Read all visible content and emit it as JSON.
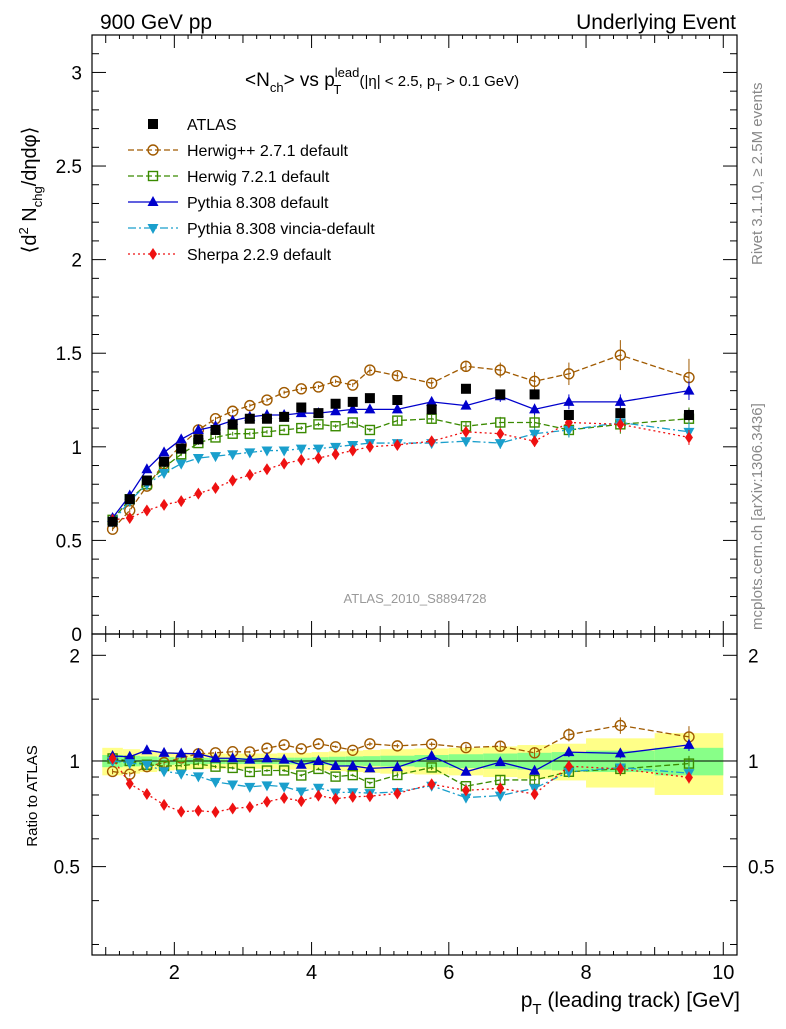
{
  "header": {
    "left": "900 GeV pp",
    "right": "Underlying Event"
  },
  "side_labels": {
    "rivet": "Rivet 3.1.10, ≥ 2.5M events",
    "mcplots": "mcplots.cern.ch [arXiv:1306.3436]"
  },
  "watermark": "ATLAS_2010_S8894728",
  "chart_data": {
    "type": "line",
    "title_main": "<N",
    "title_sub_ch": "ch",
    "title_mid": "> vs p",
    "title_sup_lead": "lead",
    "title_sub_T": "T",
    "title_cuts_a": " (|η| < 2.5, p",
    "title_cuts_sub": "T",
    "title_cuts_b": " > 0.1 GeV)",
    "ylabel_main": "⟨d",
    "ylabel_sup": "2",
    "ylabel_mid": " N",
    "ylabel_sub": "chg",
    "ylabel_end": "/dηdφ⟩",
    "ratio_ylabel": "Ratio to ATLAS",
    "xlabel_main": "p",
    "xlabel_sub": "T",
    "xlabel_end": " (leading track) [GeV]",
    "xlim": [
      0.8,
      10.2
    ],
    "ylim": [
      0,
      3.2
    ],
    "ratio_ylim": [
      0.28,
      2.3
    ],
    "x_ticks": [
      "2",
      "4",
      "6",
      "8",
      "10"
    ],
    "y_ticks": [
      "0",
      "0.5",
      "1",
      "1.5",
      "2",
      "2.5",
      "3"
    ],
    "ratio_y_ticks": [
      "0.5",
      "1",
      "2"
    ],
    "x": [
      1.1,
      1.35,
      1.6,
      1.85,
      2.1,
      2.35,
      2.6,
      2.85,
      3.1,
      3.35,
      3.6,
      3.85,
      4.1,
      4.35,
      4.6,
      4.85,
      5.25,
      5.75,
      6.25,
      6.75,
      7.25,
      7.75,
      8.5,
      9.5
    ],
    "series": [
      {
        "name": "ATLAS",
        "color": "#000000",
        "marker": "square-filled",
        "y": [
          0.6,
          0.72,
          0.82,
          0.92,
          0.99,
          1.04,
          1.09,
          1.12,
          1.15,
          1.15,
          1.16,
          1.21,
          1.18,
          1.23,
          1.24,
          1.26,
          1.25,
          1.2,
          1.31,
          1.28,
          1.28,
          1.17,
          1.18,
          1.17
        ],
        "yerr": [
          0.01,
          0.01,
          0.01,
          0.01,
          0.01,
          0.01,
          0.01,
          0.01,
          0.01,
          0.01,
          0.01,
          0.01,
          0.01,
          0.01,
          0.01,
          0.01,
          0.01,
          0.01,
          0.01,
          0.01,
          0.02,
          0.02,
          0.02,
          0.03
        ]
      },
      {
        "name": "Herwig++ 2.7.1 default",
        "color": "#a05a00",
        "marker": "circle-open",
        "line": "dashed",
        "y": [
          0.56,
          0.66,
          0.79,
          0.91,
          1.01,
          1.09,
          1.15,
          1.19,
          1.22,
          1.25,
          1.29,
          1.31,
          1.32,
          1.35,
          1.33,
          1.41,
          1.38,
          1.34,
          1.43,
          1.41,
          1.35,
          1.39,
          1.49,
          1.37
        ],
        "yerr": [
          0.01,
          0.01,
          0.01,
          0.01,
          0.01,
          0.01,
          0.01,
          0.01,
          0.01,
          0.01,
          0.01,
          0.01,
          0.01,
          0.01,
          0.01,
          0.02,
          0.02,
          0.02,
          0.03,
          0.04,
          0.05,
          0.06,
          0.08,
          0.1
        ]
      },
      {
        "name": "Herwig 7.2.1 default",
        "color": "#3a8a00",
        "marker": "square-open",
        "line": "dashed",
        "y": [
          0.61,
          0.72,
          0.8,
          0.89,
          0.96,
          1.02,
          1.05,
          1.07,
          1.07,
          1.08,
          1.09,
          1.1,
          1.12,
          1.11,
          1.13,
          1.09,
          1.14,
          1.15,
          1.11,
          1.13,
          1.13,
          1.09,
          1.12,
          1.15
        ],
        "yerr": [
          0.01,
          0.01,
          0.01,
          0.01,
          0.01,
          0.01,
          0.01,
          0.01,
          0.01,
          0.01,
          0.01,
          0.01,
          0.01,
          0.01,
          0.01,
          0.01,
          0.02,
          0.02,
          0.02,
          0.03,
          0.04,
          0.04,
          0.05,
          0.06
        ]
      },
      {
        "name": "Pythia 8.308 default",
        "color": "#0000cc",
        "marker": "triangle-up",
        "line": "solid",
        "y": [
          0.62,
          0.74,
          0.88,
          0.97,
          1.04,
          1.09,
          1.11,
          1.14,
          1.16,
          1.17,
          1.17,
          1.18,
          1.18,
          1.19,
          1.2,
          1.2,
          1.2,
          1.24,
          1.22,
          1.27,
          1.2,
          1.24,
          1.24,
          1.3
        ],
        "yerr": [
          0.01,
          0.01,
          0.01,
          0.01,
          0.01,
          0.01,
          0.01,
          0.01,
          0.01,
          0.01,
          0.01,
          0.01,
          0.01,
          0.01,
          0.01,
          0.01,
          0.02,
          0.02,
          0.02,
          0.03,
          0.03,
          0.04,
          0.04,
          0.05
        ]
      },
      {
        "name": "Pythia 8.308 vincia-default",
        "color": "#1a9fcc",
        "marker": "triangle-down",
        "line": "dashdot",
        "y": [
          0.6,
          0.71,
          0.8,
          0.86,
          0.91,
          0.94,
          0.95,
          0.96,
          0.97,
          0.98,
          0.98,
          0.99,
          0.99,
          1.0,
          1.01,
          1.02,
          1.02,
          1.02,
          1.03,
          1.02,
          1.07,
          1.09,
          1.13,
          1.08
        ],
        "yerr": [
          0.01,
          0.01,
          0.01,
          0.01,
          0.01,
          0.01,
          0.01,
          0.01,
          0.01,
          0.01,
          0.01,
          0.01,
          0.01,
          0.01,
          0.01,
          0.01,
          0.01,
          0.02,
          0.02,
          0.03,
          0.03,
          0.04,
          0.04,
          0.05
        ]
      },
      {
        "name": "Sherpa 2.2.9 default",
        "color": "#ee1111",
        "marker": "diamond",
        "line": "dotted",
        "y": [
          0.61,
          0.62,
          0.66,
          0.69,
          0.71,
          0.75,
          0.78,
          0.82,
          0.85,
          0.88,
          0.91,
          0.93,
          0.94,
          0.96,
          0.98,
          1.0,
          1.01,
          1.03,
          1.08,
          1.07,
          1.03,
          1.13,
          1.12,
          1.05
        ],
        "yerr": [
          0.01,
          0.01,
          0.01,
          0.01,
          0.01,
          0.01,
          0.01,
          0.01,
          0.01,
          0.01,
          0.01,
          0.01,
          0.01,
          0.01,
          0.01,
          0.01,
          0.01,
          0.02,
          0.02,
          0.02,
          0.03,
          0.03,
          0.04,
          0.04
        ]
      }
    ],
    "ratio_bands": [
      {
        "x0": 0.95,
        "x1": 1.25,
        "yellow": 0.09,
        "green": 0.04
      },
      {
        "x0": 1.25,
        "x1": 1.5,
        "yellow": 0.08,
        "green": 0.035
      },
      {
        "x0": 1.5,
        "x1": 1.75,
        "yellow": 0.07,
        "green": 0.03
      },
      {
        "x0": 1.75,
        "x1": 2.0,
        "yellow": 0.06,
        "green": 0.025
      },
      {
        "x0": 2.0,
        "x1": 2.25,
        "yellow": 0.055,
        "green": 0.022
      },
      {
        "x0": 2.25,
        "x1": 2.5,
        "yellow": 0.05,
        "green": 0.02
      },
      {
        "x0": 2.5,
        "x1": 2.75,
        "yellow": 0.05,
        "green": 0.02
      },
      {
        "x0": 2.75,
        "x1": 3.0,
        "yellow": 0.05,
        "green": 0.02
      },
      {
        "x0": 3.0,
        "x1": 3.25,
        "yellow": 0.05,
        "green": 0.02
      },
      {
        "x0": 3.25,
        "x1": 3.5,
        "yellow": 0.05,
        "green": 0.02
      },
      {
        "x0": 3.5,
        "x1": 3.75,
        "yellow": 0.055,
        "green": 0.022
      },
      {
        "x0": 3.75,
        "x1": 4.0,
        "yellow": 0.055,
        "green": 0.022
      },
      {
        "x0": 4.0,
        "x1": 4.25,
        "yellow": 0.06,
        "green": 0.025
      },
      {
        "x0": 4.25,
        "x1": 4.5,
        "yellow": 0.065,
        "green": 0.028
      },
      {
        "x0": 4.5,
        "x1": 4.75,
        "yellow": 0.07,
        "green": 0.03
      },
      {
        "x0": 4.75,
        "x1": 5.0,
        "yellow": 0.075,
        "green": 0.032
      },
      {
        "x0": 5.0,
        "x1": 5.5,
        "yellow": 0.08,
        "green": 0.035
      },
      {
        "x0": 5.5,
        "x1": 6.0,
        "yellow": 0.085,
        "green": 0.04
      },
      {
        "x0": 6.0,
        "x1": 6.5,
        "yellow": 0.09,
        "green": 0.045
      },
      {
        "x0": 6.5,
        "x1": 7.0,
        "yellow": 0.1,
        "green": 0.05
      },
      {
        "x0": 7.0,
        "x1": 7.5,
        "yellow": 0.11,
        "green": 0.055
      },
      {
        "x0": 7.5,
        "x1": 8.0,
        "yellow": 0.12,
        "green": 0.06
      },
      {
        "x0": 8.0,
        "x1": 9.0,
        "yellow": 0.16,
        "green": 0.07
      },
      {
        "x0": 9.0,
        "x1": 10.0,
        "yellow": 0.2,
        "green": 0.09
      }
    ]
  }
}
